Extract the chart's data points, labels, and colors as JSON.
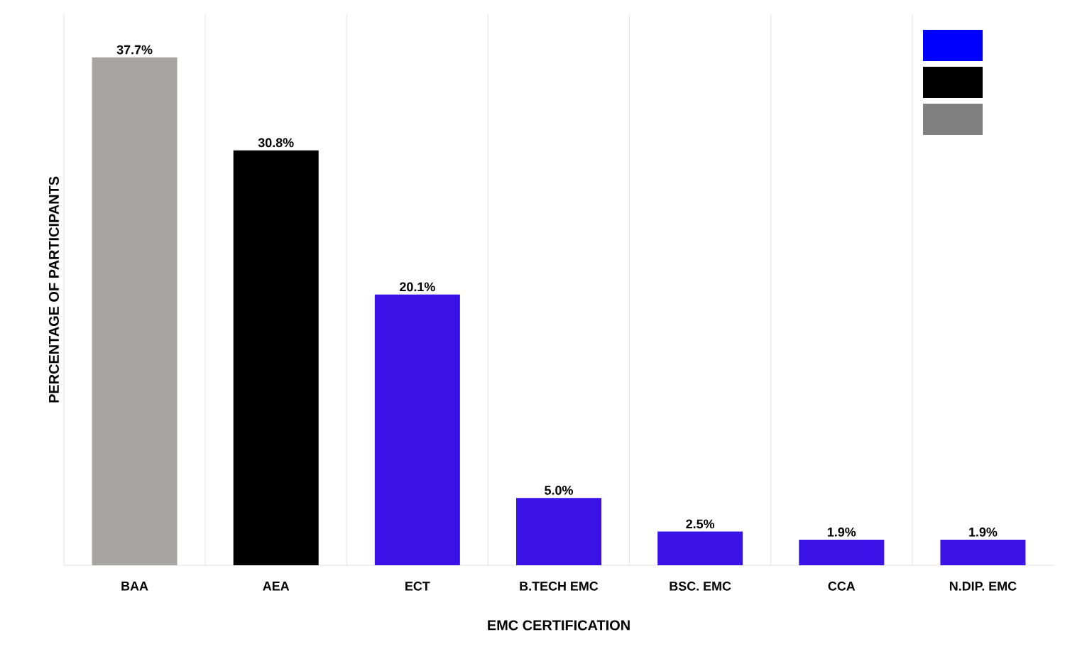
{
  "chart_data": {
    "type": "bar",
    "xlabel": "EMC CERTIFICATION",
    "ylabel": "PERCENTAGE OF PARTICIPANTS",
    "categories": [
      "BAA",
      "AEA",
      "ECT",
      "B.TECH EMC",
      "BSC. EMC",
      "CCA",
      "N.DIP. EMC"
    ],
    "values": [
      37.7,
      30.8,
      20.1,
      5.0,
      2.5,
      1.9,
      1.9
    ],
    "value_labels": [
      "37.7%",
      "30.8%",
      "20.1%",
      "5.0%",
      "2.5%",
      "1.9%",
      "1.9%"
    ],
    "colors": [
      "#a8a4a4",
      "#000000",
      "#3a12e8",
      "#3a12e8",
      "#3a12e8",
      "#3a12e8",
      "#3a12e8"
    ],
    "grid": "x"
  }
}
